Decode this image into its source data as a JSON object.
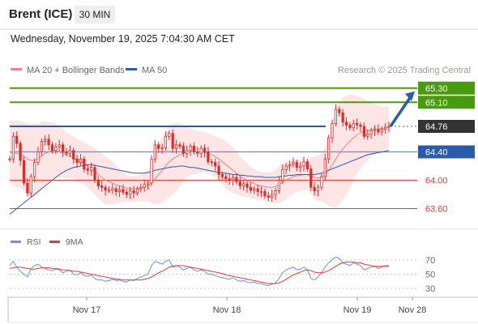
{
  "header": {
    "instrument": "Brent (ICE)",
    "timeframe": "30 MIN",
    "datetime": "Wednesday, November 19, 2025 7:04:30 AM CET"
  },
  "legend": {
    "ma20": "MA 20 + Bollinger Bands",
    "ma50": "MA 50",
    "credit": "Research © 2025 Trading Central",
    "rsi": "RSI",
    "rsi_ma": "9MA"
  },
  "colors": {
    "green": "#4a9a0f",
    "blue": "#2a5ca8",
    "lightblue": "#5b8def",
    "red": "#e53935",
    "candle": "#d32f2f",
    "band": "#fde0e0",
    "ma20": "#f08080",
    "dark": "#333333",
    "rsi": "#6b8fe8"
  },
  "chart_data": [
    {
      "type": "candlestick",
      "ylim": [
        63.4,
        65.4
      ],
      "x_ticks": [
        "Nov 17",
        "Nov 18",
        "Nov 19",
        "Nov 28"
      ],
      "levels": [
        {
          "value": 65.3,
          "label": "65.30",
          "style": "green-box"
        },
        {
          "value": 65.1,
          "label": "65.10",
          "style": "green-box"
        },
        {
          "value": 64.76,
          "label": "64.76",
          "style": "dark-box"
        },
        {
          "value": 64.4,
          "label": "64.40",
          "style": "blue-box"
        },
        {
          "value": 64.0,
          "label": "64.00",
          "style": "red-text"
        },
        {
          "value": 63.6,
          "label": "63.60",
          "style": "red-text"
        }
      ],
      "resistance_line": 64.76,
      "close_series": [
        64.3,
        64.62,
        64.52,
        64.28,
        63.96,
        63.82,
        64.05,
        64.25,
        64.4,
        64.55,
        64.58,
        64.5,
        64.42,
        64.47,
        64.5,
        64.4,
        64.38,
        64.42,
        64.3,
        64.25,
        64.3,
        64.16,
        64.14,
        64.18,
        64.0,
        63.92,
        63.9,
        63.86,
        63.86,
        63.88,
        63.84,
        63.87,
        63.83,
        63.8,
        63.85,
        63.82,
        63.88,
        63.9,
        63.94,
        63.96,
        64.3,
        64.5,
        64.45,
        64.46,
        64.62,
        64.66,
        64.45,
        64.5,
        64.48,
        64.38,
        64.42,
        64.48,
        64.4,
        64.38,
        64.45,
        64.4,
        64.26,
        64.25,
        64.2,
        64.08,
        64.05,
        64.02,
        64.0,
        64.04,
        63.98,
        63.92,
        63.95,
        63.9,
        63.86,
        63.88,
        63.84,
        63.84,
        63.78,
        63.76,
        63.8,
        63.85,
        64.0,
        64.15,
        64.2,
        64.22,
        64.25,
        64.18,
        64.2,
        64.26,
        64.16,
        63.9,
        63.85,
        63.9,
        64.05,
        64.3,
        64.6,
        64.8,
        65.0,
        64.95,
        64.82,
        64.78,
        64.74,
        64.8,
        64.78,
        64.76,
        64.62,
        64.65,
        64.7,
        64.72,
        64.68,
        64.72,
        64.75,
        64.76
      ],
      "ma20_series": [
        64.4,
        64.38,
        64.38,
        64.36,
        64.34,
        64.3,
        64.28,
        64.28,
        64.3,
        64.34,
        64.38,
        64.4,
        64.42,
        64.42,
        64.4,
        64.38,
        64.36,
        64.34,
        64.32,
        64.28,
        64.26,
        64.24,
        64.2,
        64.16,
        64.12,
        64.08,
        64.04,
        64.0,
        63.98,
        63.96,
        63.94,
        63.92,
        63.9,
        63.89,
        63.88,
        63.88,
        63.88,
        63.89,
        63.9,
        63.92,
        63.96,
        64.02,
        64.08,
        64.14,
        64.2,
        64.26,
        64.3,
        64.33,
        64.36,
        64.38,
        64.4,
        64.4,
        64.4,
        64.4,
        64.4,
        64.39,
        64.38,
        64.36,
        64.33,
        64.3,
        64.26,
        64.22,
        64.18,
        64.14,
        64.1,
        64.06,
        64.03,
        64.0,
        63.97,
        63.95,
        63.93,
        63.92,
        63.91,
        63.9,
        63.9,
        63.91,
        63.94,
        63.97,
        64.0,
        64.03,
        64.05,
        64.06,
        64.07,
        64.08,
        64.08,
        64.06,
        64.04,
        64.03,
        64.04,
        64.08,
        64.14,
        64.22,
        64.3,
        64.38,
        64.44,
        64.5,
        64.55,
        64.6,
        64.64,
        64.67,
        64.69,
        64.7,
        64.71,
        64.72,
        64.72,
        64.73,
        64.74,
        64.74
      ],
      "band_width_series": [
        0.45,
        0.46,
        0.47,
        0.47,
        0.48,
        0.5,
        0.52,
        0.52,
        0.5,
        0.48,
        0.45,
        0.42,
        0.4,
        0.38,
        0.36,
        0.34,
        0.32,
        0.31,
        0.3,
        0.3,
        0.3,
        0.3,
        0.3,
        0.31,
        0.32,
        0.33,
        0.34,
        0.34,
        0.32,
        0.3,
        0.27,
        0.24,
        0.21,
        0.19,
        0.18,
        0.18,
        0.18,
        0.19,
        0.2,
        0.22,
        0.28,
        0.36,
        0.42,
        0.46,
        0.48,
        0.5,
        0.5,
        0.48,
        0.44,
        0.4,
        0.36,
        0.33,
        0.31,
        0.3,
        0.29,
        0.28,
        0.28,
        0.28,
        0.29,
        0.3,
        0.32,
        0.33,
        0.33,
        0.32,
        0.3,
        0.28,
        0.26,
        0.24,
        0.22,
        0.21,
        0.2,
        0.2,
        0.2,
        0.21,
        0.22,
        0.24,
        0.26,
        0.27,
        0.27,
        0.26,
        0.24,
        0.23,
        0.22,
        0.22,
        0.22,
        0.26,
        0.3,
        0.32,
        0.34,
        0.4,
        0.5,
        0.6,
        0.68,
        0.72,
        0.72,
        0.7,
        0.66,
        0.6,
        0.55,
        0.5,
        0.46,
        0.42,
        0.38,
        0.35,
        0.33,
        0.31,
        0.3,
        0.3
      ],
      "ma50_series": [
        63.52,
        63.56,
        63.6,
        63.64,
        63.68,
        63.72,
        63.76,
        63.8,
        63.84,
        63.88,
        63.92,
        63.96,
        64.0,
        64.04,
        64.08,
        64.11,
        64.14,
        64.16,
        64.18,
        64.19,
        64.2,
        64.21,
        64.22,
        64.22,
        64.21,
        64.2,
        64.19,
        64.18,
        64.17,
        64.16,
        64.15,
        64.14,
        64.13,
        64.12,
        64.11,
        64.1,
        64.1,
        64.1,
        64.1,
        64.11,
        64.12,
        64.14,
        64.15,
        64.16,
        64.17,
        64.18,
        64.19,
        64.19,
        64.2,
        64.2,
        64.19,
        64.18,
        64.18,
        64.17,
        64.16,
        64.15,
        64.14,
        64.13,
        64.12,
        64.11,
        64.1,
        64.1,
        64.09,
        64.08,
        64.08,
        64.07,
        64.07,
        64.06,
        64.06,
        64.05,
        64.05,
        64.05,
        64.04,
        64.04,
        64.04,
        64.04,
        64.05,
        64.06,
        64.06,
        64.07,
        64.07,
        64.08,
        64.08,
        64.08,
        64.08,
        64.08,
        64.08,
        64.09,
        64.1,
        64.12,
        64.14,
        64.16,
        64.18,
        64.2,
        64.22,
        64.24,
        64.26,
        64.28,
        64.3,
        64.32,
        64.34,
        64.36,
        64.37,
        64.38,
        64.39,
        64.4,
        64.41,
        64.42
      ]
    },
    {
      "type": "line",
      "ylim": [
        20,
        80
      ],
      "y_ticks": [
        70,
        50,
        30
      ],
      "rsi_series": [
        62,
        68,
        60,
        54,
        50,
        46,
        58,
        62,
        64,
        60,
        58,
        56,
        55,
        57,
        56,
        52,
        54,
        56,
        50,
        49,
        52,
        48,
        47,
        49,
        44,
        42,
        42,
        40,
        41,
        43,
        41,
        42,
        40,
        39,
        42,
        41,
        44,
        46,
        48,
        50,
        62,
        68,
        66,
        64,
        68,
        70,
        60,
        62,
        60,
        56,
        58,
        60,
        56,
        54,
        56,
        54,
        50,
        50,
        48,
        46,
        45,
        44,
        43,
        45,
        42,
        40,
        41,
        39,
        38,
        39,
        37,
        37,
        35,
        34,
        36,
        38,
        44,
        52,
        56,
        58,
        60,
        56,
        57,
        60,
        56,
        44,
        42,
        46,
        52,
        60,
        66,
        70,
        74,
        72,
        66,
        64,
        62,
        66,
        64,
        62,
        56,
        58,
        60,
        61,
        58,
        60,
        62,
        62
      ],
      "ma_series": [
        58,
        59,
        60,
        60,
        59,
        58,
        57,
        57,
        58,
        59,
        59,
        59,
        58,
        58,
        57,
        56,
        56,
        55,
        54,
        54,
        53,
        52,
        51,
        50,
        49,
        48,
        47,
        46,
        45,
        44,
        43,
        43,
        42,
        42,
        42,
        42,
        42,
        42,
        43,
        44,
        46,
        49,
        52,
        54,
        57,
        60,
        61,
        62,
        62,
        62,
        61,
        60,
        59,
        58,
        57,
        56,
        55,
        54,
        53,
        52,
        51,
        49,
        48,
        47,
        46,
        45,
        44,
        43,
        42,
        41,
        40,
        39,
        38,
        37,
        37,
        37,
        38,
        40,
        43,
        46,
        49,
        51,
        53,
        55,
        56,
        55,
        53,
        52,
        52,
        53,
        55,
        58,
        61,
        64,
        66,
        67,
        67,
        67,
        66,
        66,
        64,
        63,
        62,
        61,
        61,
        61,
        61,
        61
      ]
    }
  ]
}
